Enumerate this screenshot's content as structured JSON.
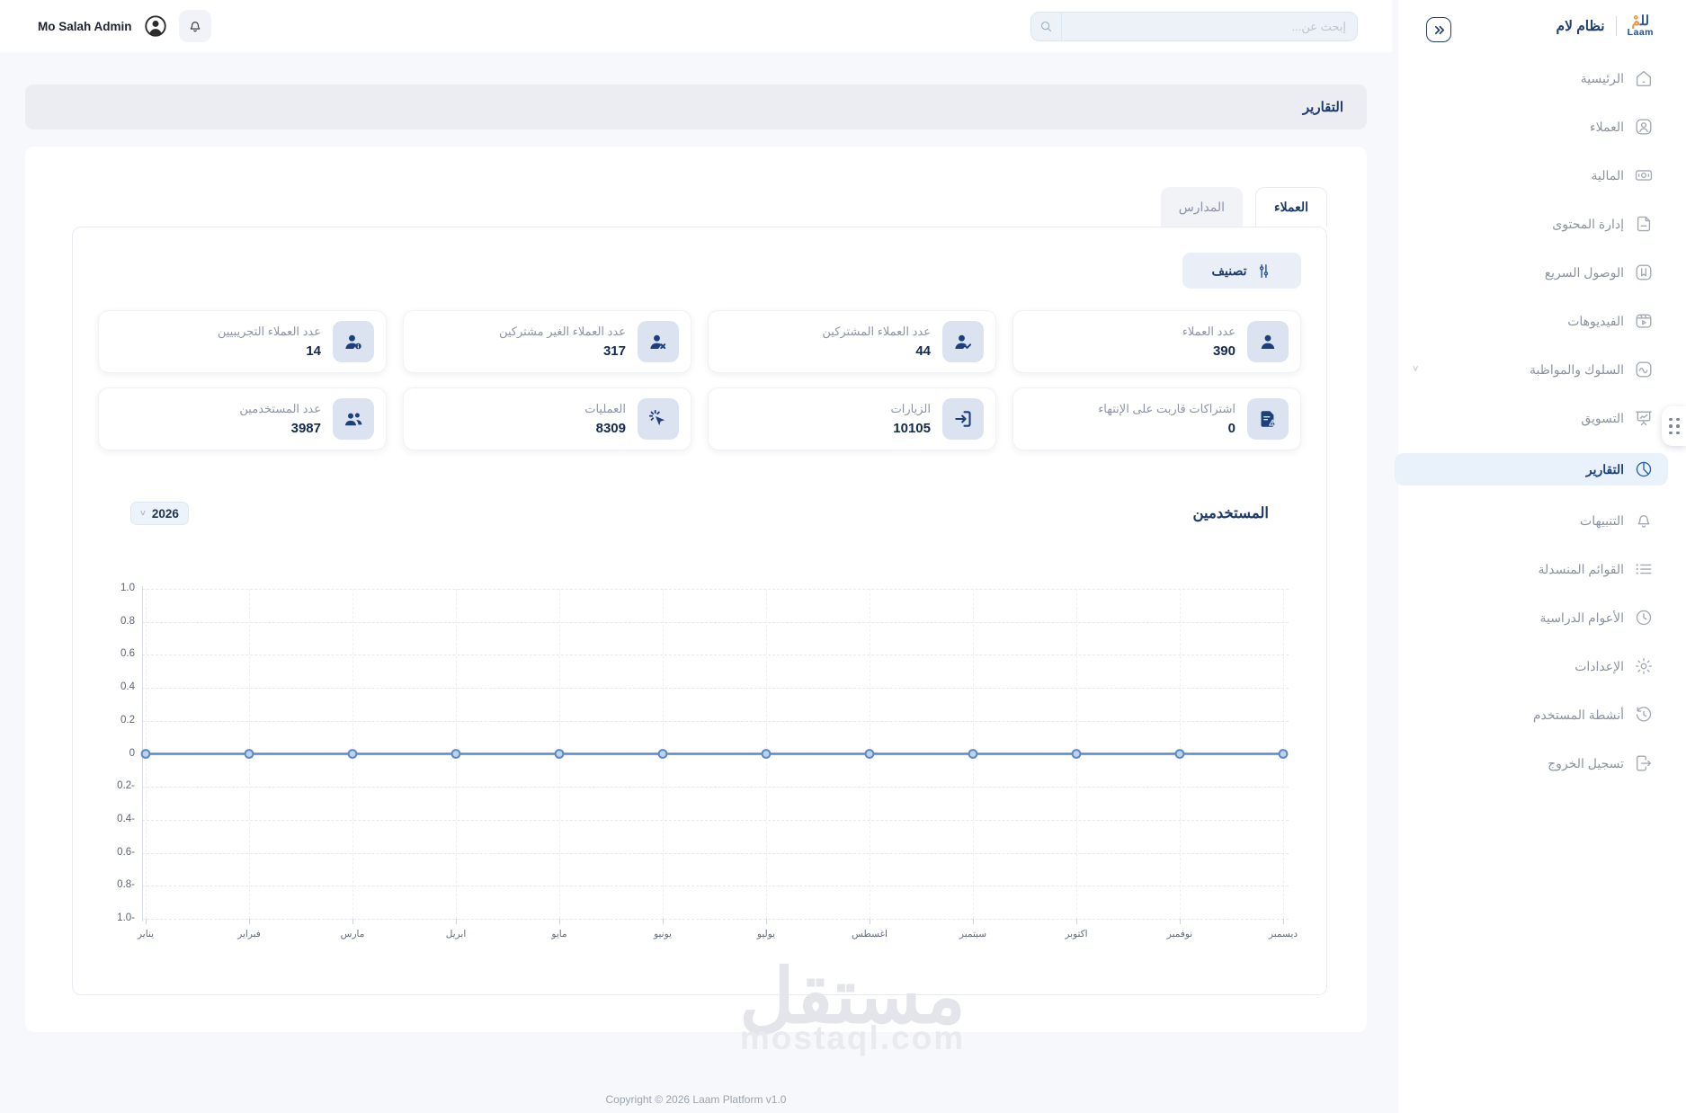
{
  "topbar": {
    "user_name": "Mo Salah Admin",
    "search_placeholder": "إبحث عن..."
  },
  "sidebar": {
    "brand": {
      "logo_ar_a": "لل",
      "logo_ar_b": "مْ",
      "logo_en": "Laam",
      "system_name": "نظام لام"
    },
    "items": [
      {
        "id": "home",
        "label": "الرئيسية",
        "icon": "home",
        "active": false,
        "chevron": false
      },
      {
        "id": "clients",
        "label": "العملاء",
        "icon": "user",
        "active": false,
        "chevron": false
      },
      {
        "id": "finance",
        "label": "المالية",
        "icon": "money",
        "active": false,
        "chevron": false
      },
      {
        "id": "content-mgmt",
        "label": "إدارة المحتوى",
        "icon": "content",
        "active": false,
        "chevron": false
      },
      {
        "id": "quick-access",
        "label": "الوصول السريع",
        "icon": "bookmark",
        "active": false,
        "chevron": false
      },
      {
        "id": "videos",
        "label": "الفيديوهات",
        "icon": "video",
        "active": false,
        "chevron": false
      },
      {
        "id": "behavior",
        "label": "السلوك والمواظبة",
        "icon": "activity",
        "active": false,
        "chevron": true
      },
      {
        "id": "marketing",
        "label": "التسويق",
        "icon": "marketing",
        "active": false,
        "chevron": false
      },
      {
        "id": "reports",
        "label": "التقارير",
        "icon": "reports",
        "active": true,
        "chevron": false
      },
      {
        "id": "notifications",
        "label": "التنبيهات",
        "icon": "bell",
        "active": false,
        "chevron": false
      },
      {
        "id": "dropdown-lists",
        "label": "القوائم المنسدلة",
        "icon": "list",
        "active": false,
        "chevron": false
      },
      {
        "id": "academic-years",
        "label": "الأعوام الدراسية",
        "icon": "clock",
        "active": false,
        "chevron": false
      },
      {
        "id": "settings",
        "label": "الإعدادات",
        "icon": "gear",
        "active": false,
        "chevron": false
      },
      {
        "id": "user-activities",
        "label": "أنشطة المستخدم",
        "icon": "history",
        "active": false,
        "chevron": false
      },
      {
        "id": "logout",
        "label": "تسجيل الخروج",
        "icon": "logout",
        "active": false,
        "chevron": false
      }
    ]
  },
  "page": {
    "header_title": "التقارير"
  },
  "tabs": [
    {
      "label": "العملاء",
      "active": true
    },
    {
      "label": "المدارس",
      "active": false
    }
  ],
  "toolbar": {
    "filter_label": "تصنيف"
  },
  "stat_cards": [
    {
      "label": "عدد العملاء",
      "value": "390",
      "icon": "s-user"
    },
    {
      "label": "عدد العملاء المشتركين",
      "value": "44",
      "icon": "s-user-check"
    },
    {
      "label": "عدد العملاء الغير مشتركين",
      "value": "317",
      "icon": "s-user-x"
    },
    {
      "label": "عدد العملاء التجريبيين",
      "value": "14",
      "icon": "s-user-info"
    },
    {
      "label": "اشتراكات قاربت على الإنتهاء",
      "value": "0",
      "icon": "s-file-warning"
    },
    {
      "label": "الزيارات",
      "value": "10105",
      "icon": "s-login"
    },
    {
      "label": "العمليات",
      "value": "8309",
      "icon": "s-click"
    },
    {
      "label": "عدد المستخدمين",
      "value": "3987",
      "icon": "s-users"
    }
  ],
  "chart_data": {
    "type": "line",
    "title": "المستخدمين",
    "year": "2026",
    "categories": [
      "يناير",
      "فبراير",
      "مارس",
      "ابريل",
      "مايو",
      "يونيو",
      "يوليو",
      "اغسطس",
      "سبتمبر",
      "اكتوبر",
      "نوفمبر",
      "ديسمبر"
    ],
    "series": [
      {
        "name": "المستخدمين",
        "values": [
          0,
          0,
          0,
          0,
          0,
          0,
          0,
          0,
          0,
          0,
          0,
          0
        ]
      }
    ],
    "ylim": [
      -1,
      1
    ],
    "ytick_labels": [
      "1.0",
      "0.8",
      "0.6",
      "0.4",
      "0.2",
      "0",
      "0.2-",
      "0.4-",
      "0.6-",
      "0.8-",
      "1.0-"
    ],
    "grid": true,
    "legend": "none",
    "line_color": "#5d89c5",
    "marker_fill": "#bdd2ec"
  },
  "footer": {
    "copyright": "Copyright © 2026 Laam Platform v1.0"
  },
  "watermark": {
    "text_ar": "مستقل",
    "text_en": "mostaql.com"
  }
}
